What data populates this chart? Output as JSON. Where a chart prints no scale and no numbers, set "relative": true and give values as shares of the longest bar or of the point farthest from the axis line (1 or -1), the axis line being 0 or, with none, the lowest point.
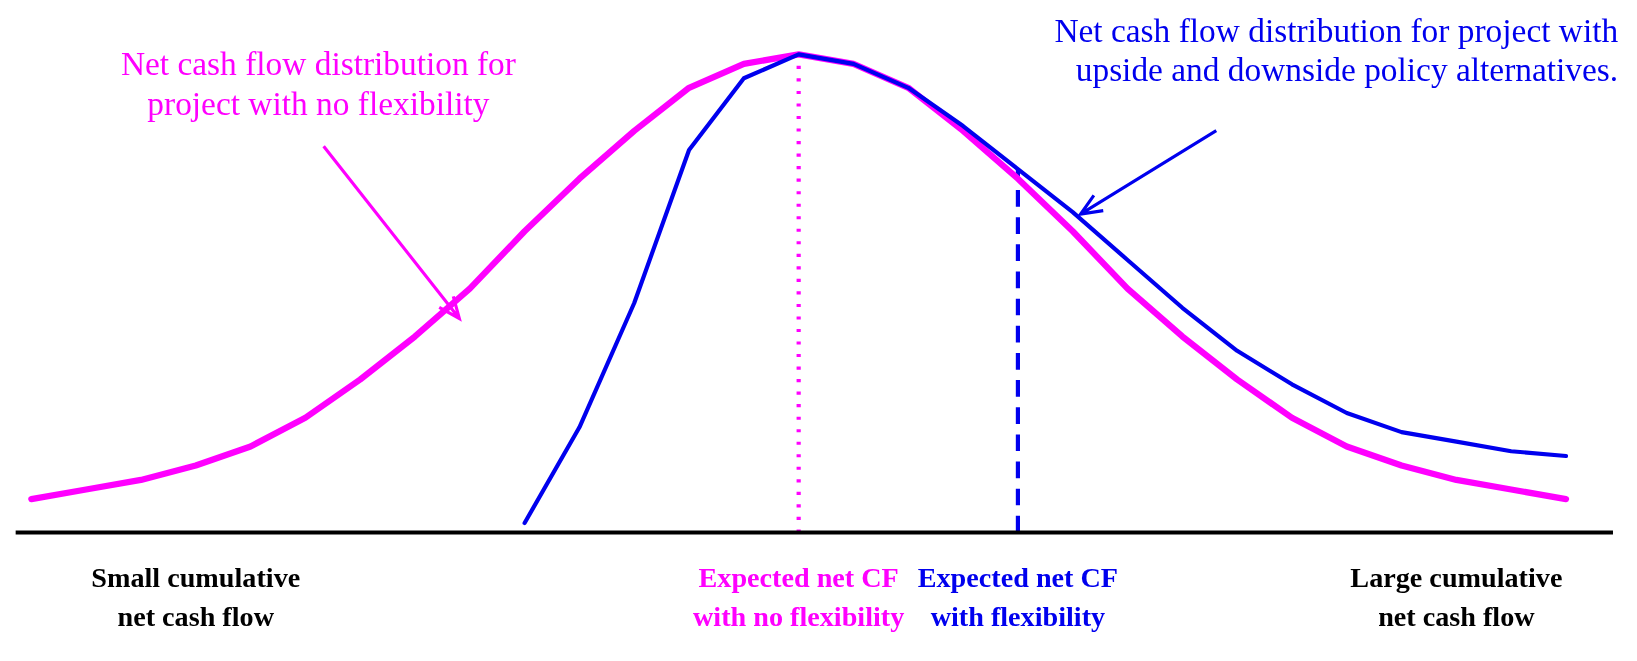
{
  "chart_data": {
    "type": "line",
    "relative": true,
    "legend": false,
    "grid": false,
    "marker": "none",
    "categories": [
      null,
      null,
      null,
      "Small cumulative net cash flow",
      null,
      null,
      null,
      null,
      null,
      null,
      null,
      null,
      null,
      null,
      "Expected net CF with no flexibility",
      null,
      null,
      null,
      "Expected net CF with flexibility",
      null,
      null,
      null,
      null,
      null,
      null,
      null,
      "Large cumulative net cash flow",
      null,
      null
    ],
    "series": [
      {
        "color": "#ff00ff",
        "values": [
          0.07,
          0.09,
          0.11,
          0.14,
          0.18,
          0.24,
          0.32,
          0.41,
          0.51,
          0.63,
          0.74,
          0.84,
          0.93,
          0.98,
          1,
          0.98,
          0.93,
          0.84,
          0.74,
          0.63,
          0.51,
          0.41,
          0.32,
          0.24,
          0.18,
          0.14,
          0.11,
          0.09,
          0.07
        ]
      },
      {
        "color": "#0000ee",
        "values": [
          null,
          null,
          null,
          null,
          null,
          null,
          null,
          null,
          null,
          0.02,
          0.22,
          0.48,
          0.8,
          0.95,
          1,
          0.98,
          0.93,
          0.85,
          0.76,
          0.67,
          0.57,
          0.47,
          0.38,
          0.31,
          0.25,
          0.21,
          0.19,
          0.17,
          0.16
        ]
      }
    ],
    "ref_lines": [
      {
        "axis": "x",
        "value": "Expected net CF with no flexibility",
        "color": "#ff00ff",
        "line_style": "dotted"
      },
      {
        "axis": "x",
        "value": "Expected net CF with flexibility",
        "color": "#0000ee",
        "line_style": "dashed"
      }
    ],
    "annotations": [
      "Net cash flow distribution for project with no flexibility",
      "Net cash flow distribution for project with upside and downside policy alternatives."
    ]
  }
}
